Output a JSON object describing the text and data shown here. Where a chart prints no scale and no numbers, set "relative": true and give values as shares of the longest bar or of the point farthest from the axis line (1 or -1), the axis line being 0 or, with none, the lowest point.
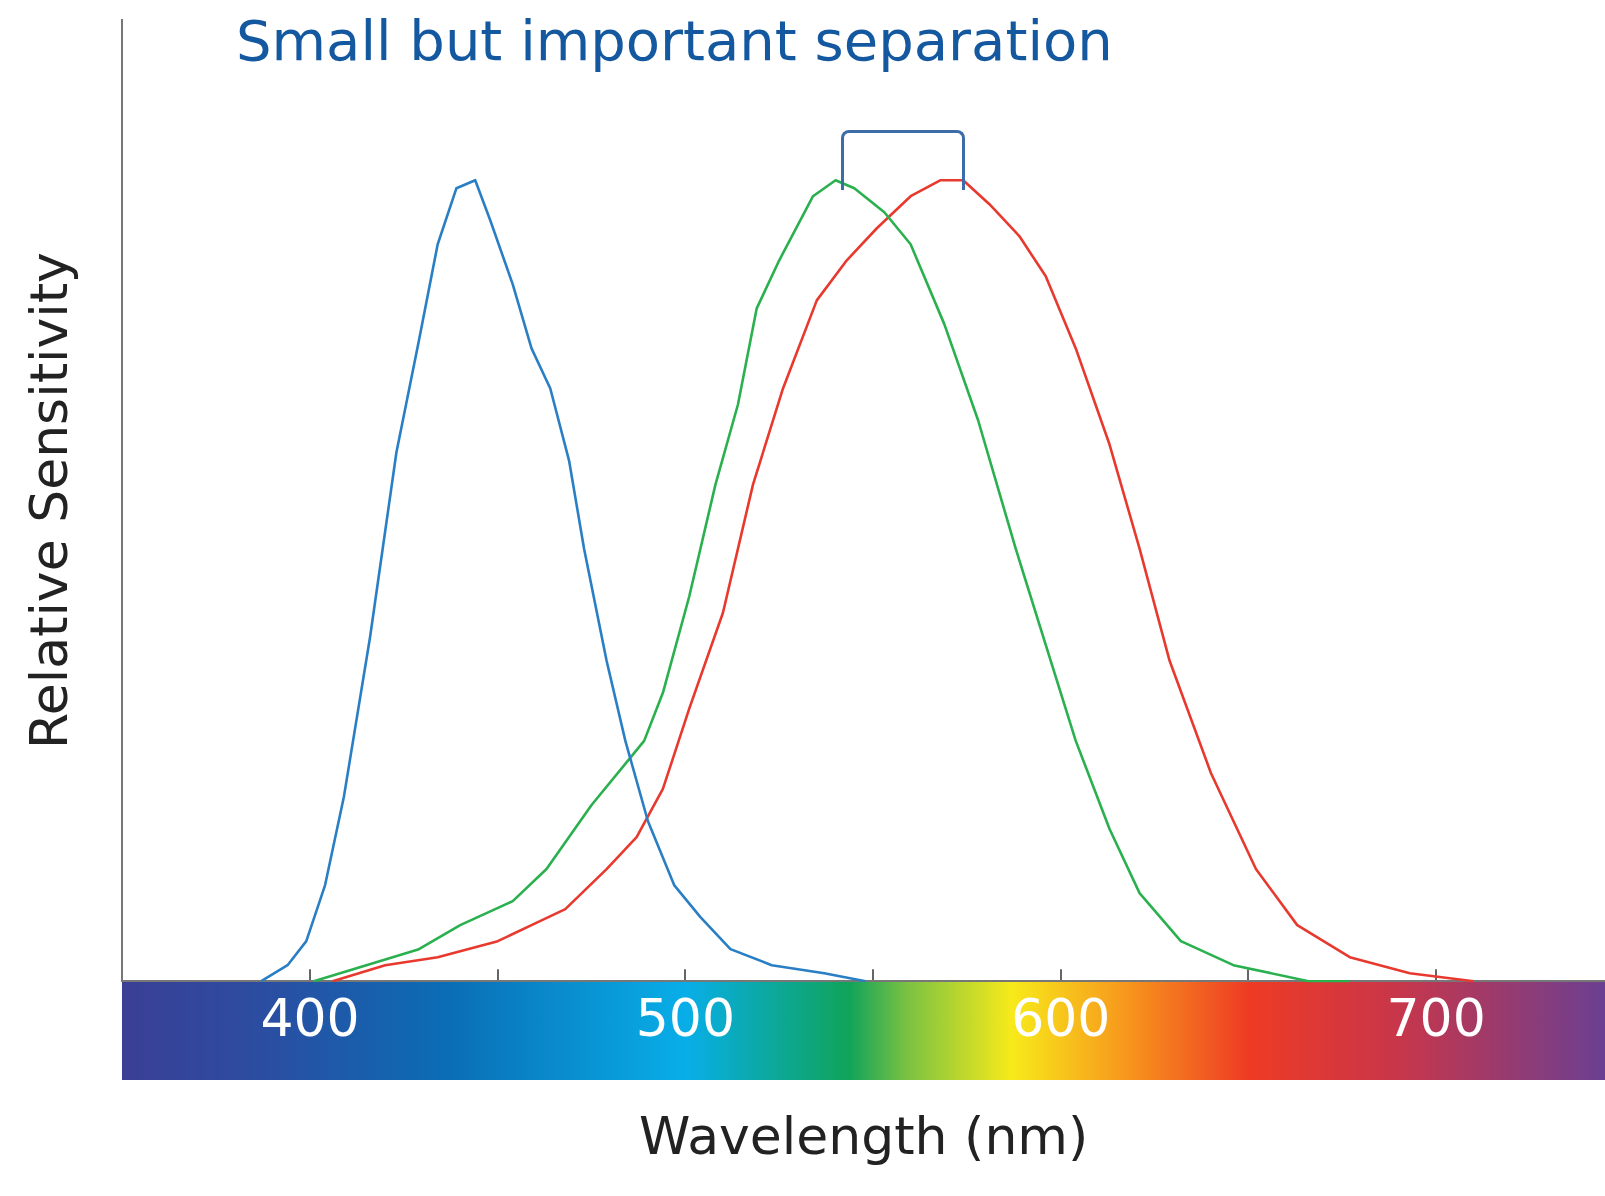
{
  "chart_data": {
    "type": "line",
    "title": "Small but important separation",
    "xlabel": "Wavelength (nm)",
    "ylabel": "Relative Sensitivity",
    "relative": true,
    "legend": false,
    "grid": false,
    "xlim": [
      350,
      745
    ],
    "xticks": [
      400,
      {
        "value": 450,
        "label": null
      },
      500,
      {
        "value": 550,
        "label": null
      },
      600,
      {
        "value": 650,
        "label": null
      },
      700
    ],
    "series": [
      {
        "color": "#2a7fc4",
        "x": [
          387,
          394,
          399,
          404,
          409,
          416,
          423,
          429,
          434,
          439,
          444,
          448,
          454,
          459,
          464,
          469,
          473,
          479,
          484,
          490,
          497,
          504,
          512,
          523,
          537,
          548
        ],
        "values": [
          0,
          0.02,
          0.05,
          0.12,
          0.23,
          0.43,
          0.66,
          0.8,
          0.92,
          0.99,
          1,
          0.95,
          0.87,
          0.79,
          0.74,
          0.65,
          0.54,
          0.4,
          0.3,
          0.2,
          0.12,
          0.08,
          0.04,
          0.02,
          0.01,
          0
        ]
      },
      {
        "color": "#2ab04e",
        "x": [
          401,
          415,
          429,
          440,
          454,
          463,
          475,
          489,
          494,
          501,
          508,
          514,
          519,
          525,
          534,
          540,
          545,
          553,
          560,
          569,
          578,
          588,
          596,
          604,
          613,
          621,
          632,
          646,
          666,
          677
        ],
        "values": [
          0,
          0.02,
          0.04,
          0.07,
          0.1,
          0.14,
          0.22,
          0.3,
          0.36,
          0.48,
          0.62,
          0.72,
          0.84,
          0.9,
          0.98,
          1,
          0.99,
          0.96,
          0.92,
          0.82,
          0.7,
          0.54,
          0.42,
          0.3,
          0.19,
          0.11,
          0.05,
          0.02,
          0,
          0
        ]
      },
      {
        "color": "#e8392f",
        "x": [
          406,
          420,
          434,
          450,
          459,
          468,
          479,
          487,
          494,
          501,
          510,
          518,
          526,
          535,
          543,
          551,
          560,
          568,
          574,
          581,
          589,
          596,
          604,
          613,
          621,
          629,
          640,
          652,
          663,
          677,
          693,
          710
        ],
        "values": [
          0,
          0.02,
          0.03,
          0.05,
          0.07,
          0.09,
          0.14,
          0.18,
          0.24,
          0.34,
          0.46,
          0.62,
          0.74,
          0.85,
          0.9,
          0.94,
          0.98,
          1,
          1,
          0.97,
          0.93,
          0.88,
          0.79,
          0.67,
          0.54,
          0.4,
          0.26,
          0.14,
          0.07,
          0.03,
          0.01,
          0
        ]
      }
    ]
  }
}
